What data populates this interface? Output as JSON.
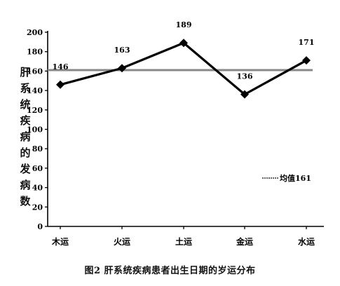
{
  "chart_data": {
    "type": "line",
    "caption": "图2 肝系统疾病患者出生日期的岁运分布",
    "ylabel": "肝系统疾病的发病数",
    "categories": [
      "木运",
      "火运",
      "土运",
      "金运",
      "水运"
    ],
    "series": [
      {
        "values": [
          146,
          163,
          189,
          136,
          171
        ],
        "color": "#000000"
      }
    ],
    "reference_line": {
      "label": "均值161",
      "value": 161,
      "color": "#888888"
    },
    "ylim": [
      0,
      200
    ],
    "yticks": [
      0,
      20,
      40,
      60,
      80,
      100,
      120,
      140,
      160,
      180,
      200
    ],
    "grid": false,
    "legend_position": "right"
  }
}
